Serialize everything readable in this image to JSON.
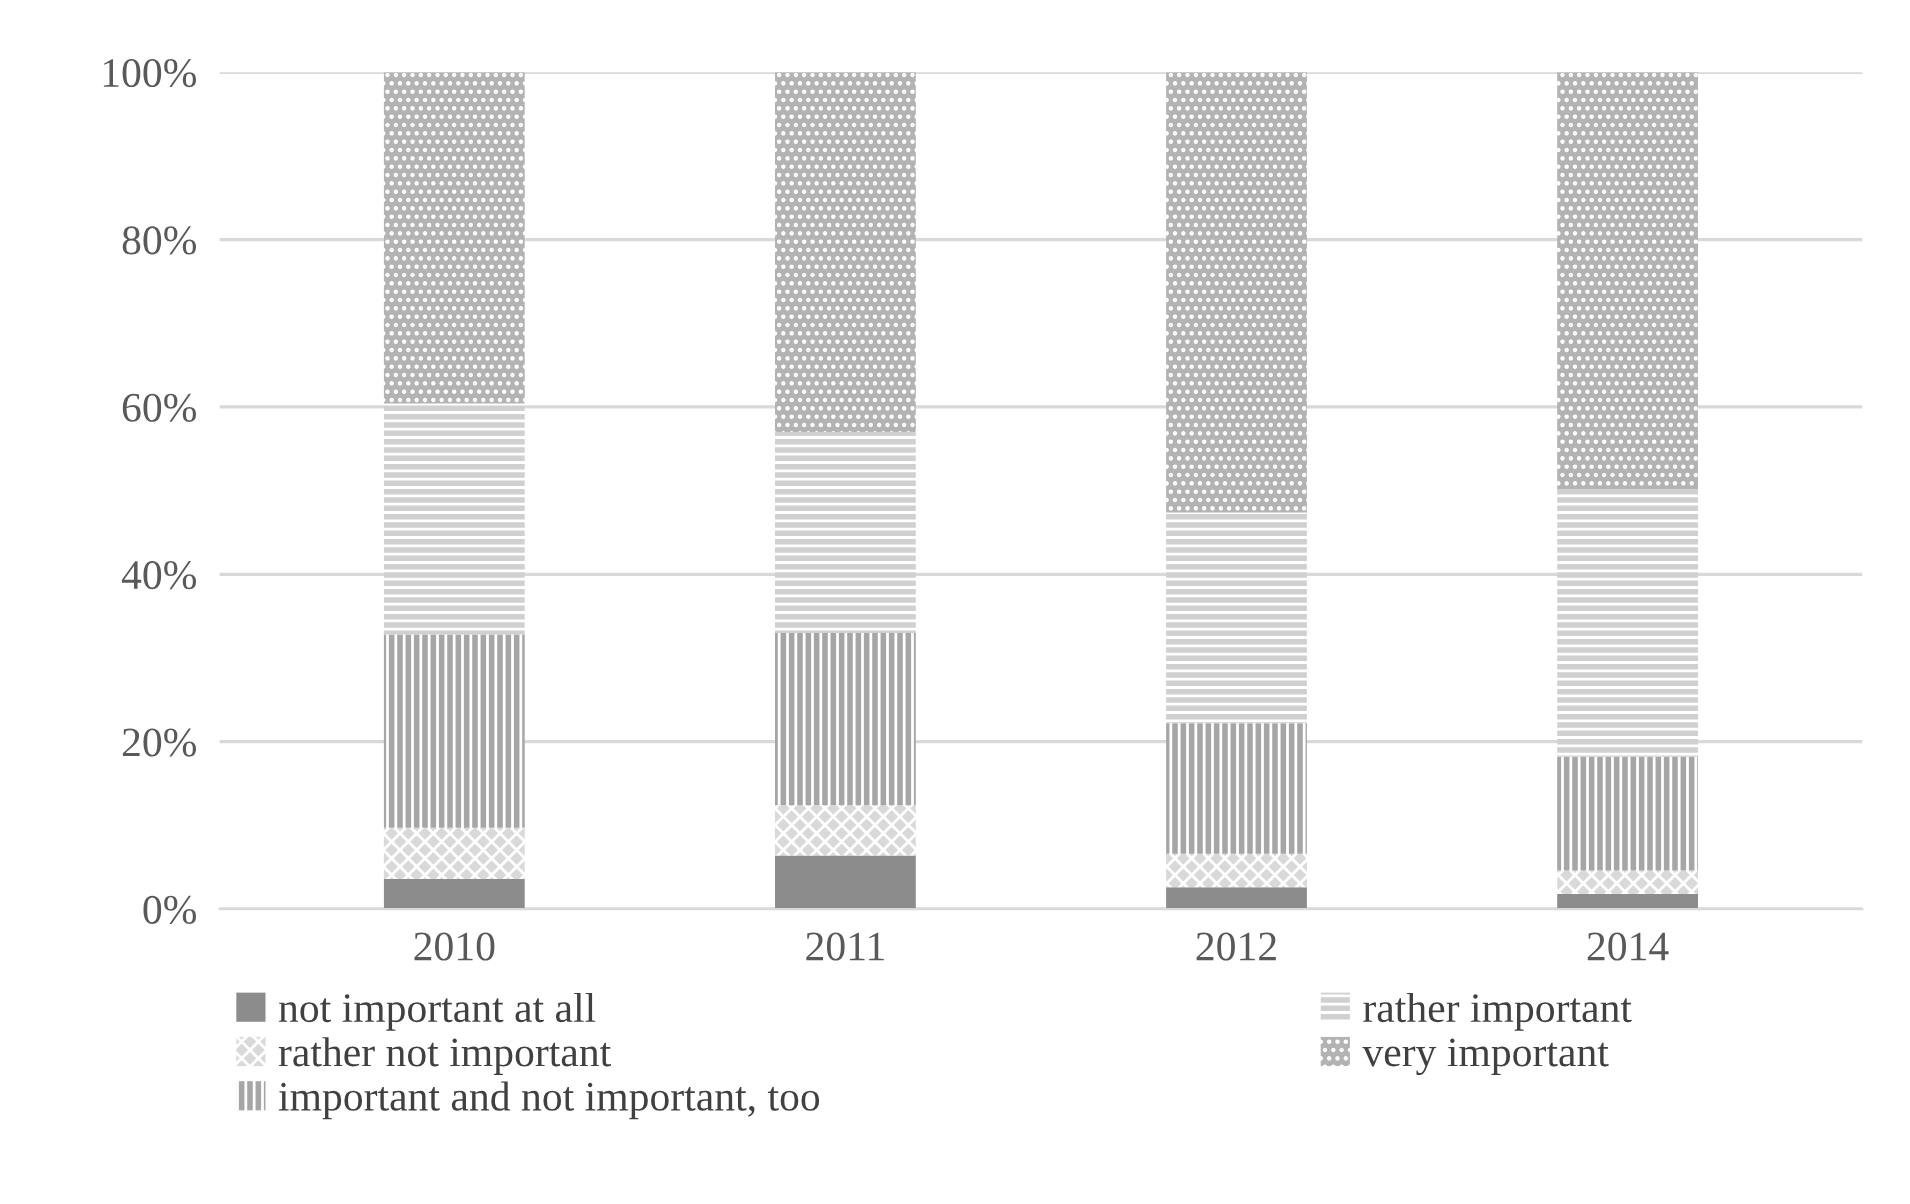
{
  "chart_data": {
    "type": "bar",
    "stacked": true,
    "categories": [
      "2010",
      "2011",
      "2012",
      "2014"
    ],
    "series": [
      {
        "name": "not important at all",
        "color": "#8c8c8c",
        "values": [
          3.6,
          6.4,
          2.6,
          1.8
        ]
      },
      {
        "name": "rather not important",
        "color": "#d9d9d9",
        "values": [
          6.1,
          6.0,
          4.0,
          2.8
        ]
      },
      {
        "name": "important and not important, too",
        "color": "#a6a6a6",
        "values": [
          23.1,
          20.6,
          15.6,
          13.6
        ]
      },
      {
        "name": "rather important",
        "color": "#d0d0d0",
        "values": [
          27.6,
          24.0,
          25.2,
          32.0
        ]
      },
      {
        "name": "very important",
        "color": "#b3b3b3",
        "values": [
          39.6,
          43.0,
          52.6,
          49.8
        ]
      }
    ],
    "ylim": [
      0,
      100
    ],
    "yticks": [
      {
        "value": 0,
        "label": "0%"
      },
      {
        "value": 20,
        "label": "20%"
      },
      {
        "value": 40,
        "label": "40%"
      },
      {
        "value": 60,
        "label": "60%"
      },
      {
        "value": 80,
        "label": "80%"
      },
      {
        "value": 100,
        "label": "100%"
      }
    ],
    "grid": "y",
    "legend": "bottom"
  }
}
